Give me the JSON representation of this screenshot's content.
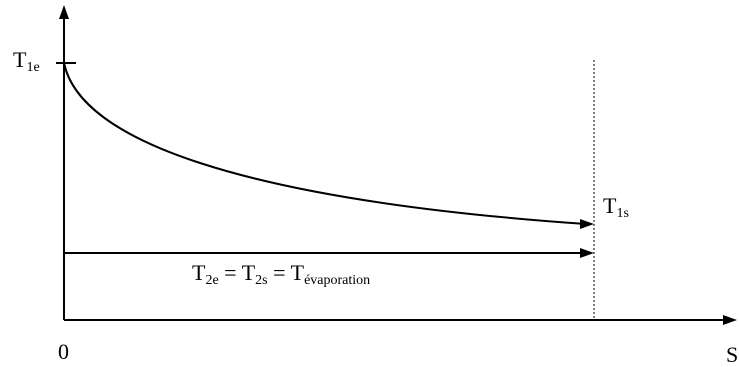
{
  "labels": {
    "t1e": {
      "main": "T",
      "sub": "1e"
    },
    "t1s": {
      "main": "T",
      "sub": "1s"
    },
    "equation": {
      "t2e_main": "T",
      "t2e_sub": "2e",
      "eq1": " = ",
      "t2s_main": "T",
      "t2s_sub": "2s",
      "eq2": " = ",
      "tevap_main": "T",
      "tevap_sub": "évaporation"
    },
    "origin": "0",
    "x_axis": "S"
  },
  "colors": {
    "line": "#000000"
  }
}
